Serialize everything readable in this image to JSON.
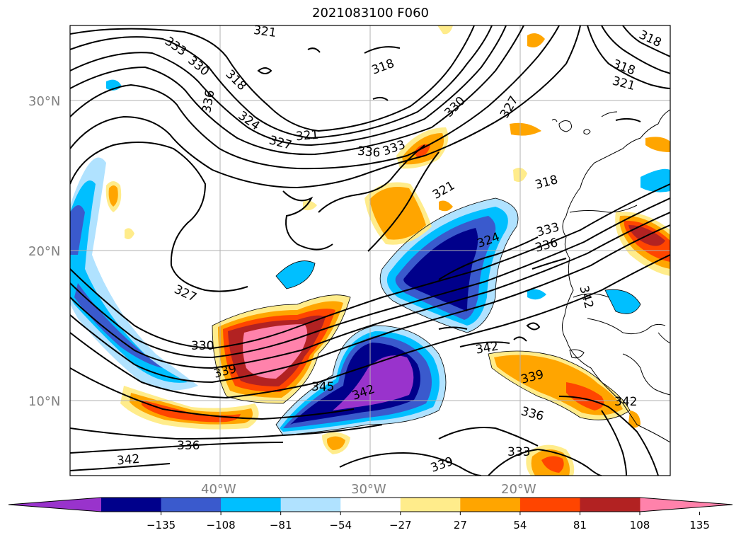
{
  "figure": {
    "title": "2021083100 F060"
  },
  "axes": {
    "lat_ticks": [
      "30°N",
      "20°N",
      "10°N"
    ],
    "lon_ticks": [
      "40°W",
      "30°W",
      "20°W"
    ],
    "grid": true,
    "extent": {
      "lon_min": -50,
      "lon_max": -10,
      "lat_min": 5,
      "lat_max": 35
    }
  },
  "contour_labels": [
    "321",
    "333",
    "330",
    "318",
    "336",
    "318",
    "324",
    "321",
    "327",
    "336",
    "333",
    "330",
    "327",
    "318",
    "321",
    "318",
    "321",
    "318",
    "333",
    "336",
    "324",
    "327",
    "330",
    "339",
    "345",
    "342",
    "342",
    "339",
    "336",
    "333",
    "342",
    "339",
    "336",
    "342",
    "342"
  ],
  "colorbar": {
    "ticks": [
      "−135",
      "−108",
      "−81",
      "−54",
      "−27",
      "27",
      "54",
      "81",
      "108",
      "135"
    ],
    "colors": [
      "#9933cc",
      "#00008b",
      "#3a5acd",
      "#00bfff",
      "#b0e2ff",
      "#ffffff",
      "#ffec8b",
      "#ffa500",
      "#ff4500",
      "#b22222",
      "#ff82ab"
    ],
    "extend": "both"
  }
}
